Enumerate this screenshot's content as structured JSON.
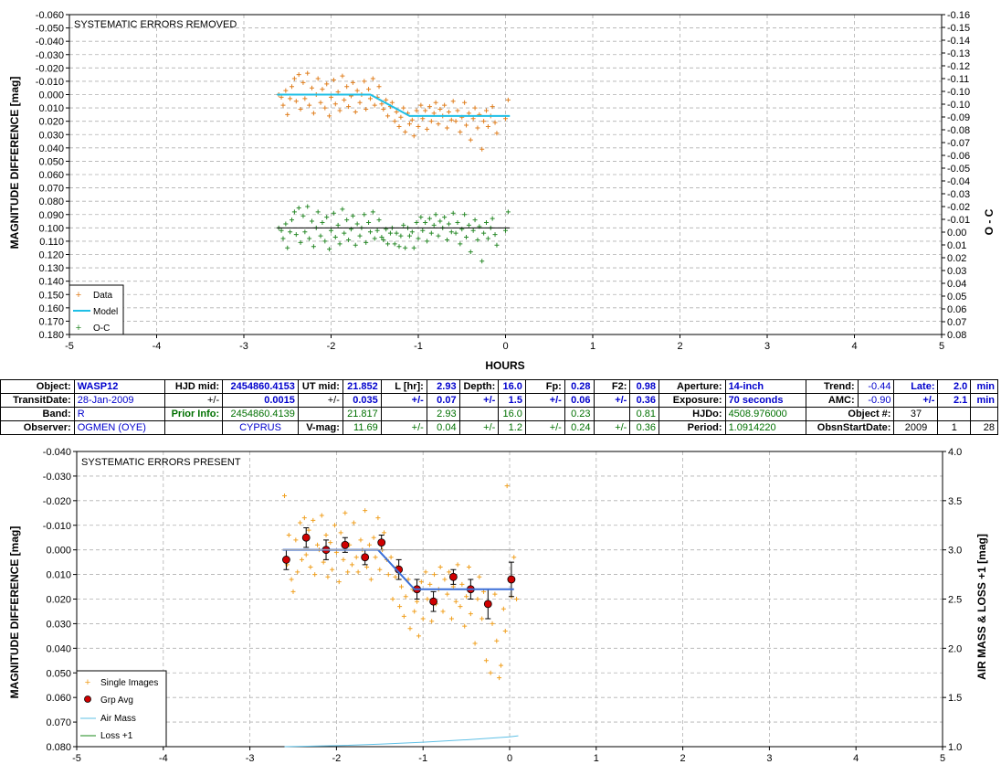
{
  "colors": {
    "data": "#e07f1f",
    "model": "#1fbfe6",
    "oc": "#2a8a2a",
    "single": "#f0a020",
    "grp": "#d00000",
    "bottom_model": "#3a6fd8",
    "airmass": "#5fc0e6",
    "loss": "#1a8a1a",
    "blue_text": "#0000cc",
    "green_text": "#007000"
  },
  "chart_data": [
    {
      "type": "scatter",
      "panel": "top",
      "title": "SYSTEMATIC ERRORS REMOVED",
      "xlabel": "HOURS",
      "ylabel": "MAGNITUDE DIFFERENCE [mag]",
      "y2label": "O - C",
      "xlim": [
        -5,
        5
      ],
      "ylim": [
        -0.06,
        0.18
      ],
      "y_inverted": true,
      "y2lim": [
        -0.16,
        0.08
      ],
      "x_ticks": [
        "-5",
        "-4",
        "-3",
        "-2",
        "-1",
        "0",
        "1",
        "2",
        "3",
        "4",
        "5"
      ],
      "y_ticks": [
        "-0.060",
        "-0.050",
        "-0.040",
        "-0.030",
        "-0.020",
        "-0.010",
        "0.000",
        "0.010",
        "0.020",
        "0.030",
        "0.040",
        "0.050",
        "0.060",
        "0.070",
        "0.080",
        "0.090",
        "0.100",
        "0.110",
        "0.120",
        "0.130",
        "0.140",
        "0.150",
        "0.160",
        "0.170",
        "0.180"
      ],
      "y2_ticks": [
        "-0.16",
        "-0.15",
        "-0.14",
        "-0.13",
        "-0.12",
        "-0.11",
        "-0.10",
        "-0.10",
        "-0.09",
        "-0.08",
        "-0.07",
        "-0.06",
        "-0.05",
        "-0.04",
        "-0.03",
        "-0.02",
        "-0.01",
        "0.00",
        "0.01",
        "0.02",
        "0.03",
        "0.04",
        "0.05",
        "0.06",
        "0.07",
        "0.08"
      ],
      "grid": true,
      "legend": {
        "placement": "bottom-left",
        "entries": [
          "Data",
          "Model",
          "O-C"
        ]
      },
      "series": [
        {
          "name": "Data",
          "kind": "points",
          "x": [
            -2.6,
            -2.57,
            -2.55,
            -2.52,
            -2.5,
            -2.47,
            -2.45,
            -2.42,
            -2.4,
            -2.37,
            -2.35,
            -2.32,
            -2.3,
            -2.27,
            -2.25,
            -2.22,
            -2.2,
            -2.17,
            -2.15,
            -2.12,
            -2.1,
            -2.07,
            -2.05,
            -2.02,
            -2.0,
            -1.97,
            -1.95,
            -1.92,
            -1.9,
            -1.87,
            -1.85,
            -1.82,
            -1.8,
            -1.77,
            -1.75,
            -1.72,
            -1.7,
            -1.67,
            -1.65,
            -1.62,
            -1.6,
            -1.57,
            -1.55,
            -1.52,
            -1.5,
            -1.47,
            -1.45,
            -1.42,
            -1.4,
            -1.37,
            -1.35,
            -1.32,
            -1.3,
            -1.27,
            -1.25,
            -1.22,
            -1.2,
            -1.17,
            -1.15,
            -1.12,
            -1.1,
            -1.07,
            -1.05,
            -1.02,
            -1.0,
            -0.97,
            -0.95,
            -0.92,
            -0.9,
            -0.87,
            -0.85,
            -0.82,
            -0.8,
            -0.77,
            -0.75,
            -0.72,
            -0.7,
            -0.67,
            -0.65,
            -0.62,
            -0.6,
            -0.57,
            -0.55,
            -0.52,
            -0.5,
            -0.47,
            -0.45,
            -0.42,
            -0.4,
            -0.37,
            -0.35,
            -0.32,
            -0.3,
            -0.27,
            -0.25,
            -0.22,
            -0.2,
            -0.17,
            -0.15,
            -0.12,
            -0.1,
            0.0,
            0.03
          ],
          "y": [
            0.0,
            0.002,
            0.008,
            -0.003,
            0.015,
            0.003,
            -0.006,
            -0.012,
            0.005,
            -0.015,
            0.011,
            -0.009,
            0.003,
            -0.016,
            0.008,
            -0.005,
            0.014,
            0.0,
            -0.012,
            0.006,
            -0.004,
            0.01,
            -0.008,
            0.016,
            0.002,
            -0.011,
            0.007,
            -0.002,
            0.012,
            -0.014,
            0.004,
            -0.006,
            0.009,
            0.001,
            -0.009,
            0.013,
            -0.003,
            0.006,
            0.0,
            -0.01,
            0.011,
            -0.004,
            0.003,
            -0.012,
            0.008,
            0.002,
            -0.006,
            0.007,
            0.011,
            0.004,
            0.016,
            0.009,
            0.006,
            0.02,
            0.013,
            0.024,
            0.017,
            0.01,
            0.028,
            0.014,
            0.022,
            0.019,
            0.031,
            0.012,
            0.024,
            0.008,
            0.018,
            0.012,
            0.026,
            0.009,
            0.02,
            0.014,
            0.006,
            0.022,
            0.011,
            0.016,
            0.008,
            0.025,
            0.013,
            0.019,
            0.005,
            0.02,
            0.012,
            0.028,
            0.017,
            0.006,
            0.023,
            0.014,
            0.034,
            0.018,
            0.01,
            0.025,
            0.015,
            0.041,
            0.02,
            0.012,
            0.024,
            0.016,
            0.009,
            0.021,
            0.029,
            0.018,
            0.004
          ]
        },
        {
          "name": "Model",
          "kind": "line",
          "x": [
            -2.62,
            -1.55,
            -1.1,
            0.05
          ],
          "y": [
            0.0,
            0.0,
            0.016,
            0.016
          ]
        },
        {
          "name": "O-C",
          "kind": "points",
          "x": [
            -2.6,
            -2.57,
            -2.55,
            -2.52,
            -2.5,
            -2.47,
            -2.45,
            -2.42,
            -2.4,
            -2.37,
            -2.35,
            -2.32,
            -2.3,
            -2.27,
            -2.25,
            -2.22,
            -2.2,
            -2.17,
            -2.15,
            -2.12,
            -2.1,
            -2.07,
            -2.05,
            -2.02,
            -2.0,
            -1.97,
            -1.95,
            -1.92,
            -1.9,
            -1.87,
            -1.85,
            -1.82,
            -1.8,
            -1.77,
            -1.75,
            -1.72,
            -1.7,
            -1.67,
            -1.65,
            -1.62,
            -1.6,
            -1.57,
            -1.55,
            -1.52,
            -1.5,
            -1.47,
            -1.45,
            -1.42,
            -1.4,
            -1.37,
            -1.35,
            -1.32,
            -1.3,
            -1.27,
            -1.25,
            -1.22,
            -1.2,
            -1.17,
            -1.15,
            -1.12,
            -1.1,
            -1.07,
            -1.05,
            -1.02,
            -1.0,
            -0.97,
            -0.95,
            -0.92,
            -0.9,
            -0.87,
            -0.85,
            -0.82,
            -0.8,
            -0.77,
            -0.75,
            -0.72,
            -0.7,
            -0.67,
            -0.65,
            -0.62,
            -0.6,
            -0.57,
            -0.55,
            -0.52,
            -0.5,
            -0.47,
            -0.45,
            -0.42,
            -0.4,
            -0.37,
            -0.35,
            -0.32,
            -0.3,
            -0.27,
            -0.25,
            -0.22,
            -0.2,
            -0.17,
            -0.15,
            -0.12,
            -0.1,
            0.0,
            0.03
          ],
          "y": [
            0.0,
            0.002,
            0.008,
            -0.003,
            0.015,
            0.003,
            -0.006,
            -0.012,
            0.005,
            -0.015,
            0.011,
            -0.009,
            0.003,
            -0.016,
            0.008,
            -0.005,
            0.014,
            0.0,
            -0.012,
            0.006,
            -0.004,
            0.01,
            -0.008,
            0.016,
            0.002,
            -0.011,
            0.007,
            -0.002,
            0.012,
            -0.014,
            0.004,
            -0.006,
            0.009,
            0.001,
            -0.009,
            0.013,
            -0.003,
            0.006,
            0.0,
            -0.01,
            0.011,
            -0.004,
            0.003,
            -0.012,
            0.008,
            0.002,
            -0.006,
            0.007,
            0.009,
            0.001,
            0.012,
            0.004,
            0.0,
            0.012,
            0.004,
            0.014,
            0.006,
            -0.002,
            0.015,
            0.0,
            0.006,
            0.003,
            0.015,
            -0.004,
            0.008,
            -0.008,
            0.002,
            -0.004,
            0.01,
            -0.007,
            0.004,
            -0.002,
            -0.01,
            0.006,
            -0.005,
            0.0,
            -0.008,
            0.009,
            -0.003,
            0.003,
            -0.011,
            0.004,
            -0.004,
            0.012,
            0.001,
            -0.01,
            0.007,
            -0.002,
            0.018,
            0.002,
            -0.006,
            0.009,
            -0.001,
            0.025,
            0.004,
            -0.004,
            0.008,
            0.0,
            -0.007,
            0.005,
            0.013,
            0.002,
            -0.012
          ]
        },
        {
          "name": "O-C baseline",
          "kind": "line",
          "x": [
            -2.62,
            0.05
          ],
          "y": [
            0.0,
            0.0
          ]
        }
      ]
    },
    {
      "type": "scatter",
      "panel": "bottom",
      "title": "SYSTEMATIC ERRORS PRESENT",
      "xlabel": "",
      "ylabel": "MAGNITUDE DIFFERENCE [mag]",
      "y2label": "AIR MASS & LOSS +1 [mag]",
      "xlim": [
        -5,
        5
      ],
      "ylim": [
        -0.04,
        0.08
      ],
      "y_inverted": true,
      "y2lim": [
        1.0,
        4.0
      ],
      "x_ticks": [
        "-5",
        "-4",
        "-3",
        "-2",
        "-1",
        "0",
        "1",
        "2",
        "3",
        "4",
        "5"
      ],
      "y_ticks": [
        "-0.040",
        "-0.030",
        "-0.020",
        "-0.010",
        "0.000",
        "0.010",
        "0.020",
        "0.030",
        "0.040",
        "0.050",
        "0.060",
        "0.070",
        "0.080"
      ],
      "y2_ticks": [
        "4.0",
        "3.5",
        "3.0",
        "2.5",
        "2.0",
        "1.5",
        "1.0"
      ],
      "grid": true,
      "legend": {
        "placement": "bottom-left",
        "entries": [
          "Single Images",
          "Grp Avg",
          "Air Mass",
          "Loss +1"
        ]
      },
      "series": [
        {
          "name": "Single Images",
          "kind": "points",
          "x": [
            -2.6,
            -2.57,
            -2.55,
            -2.52,
            -2.5,
            -2.47,
            -2.45,
            -2.42,
            -2.4,
            -2.37,
            -2.35,
            -2.32,
            -2.3,
            -2.27,
            -2.25,
            -2.22,
            -2.2,
            -2.17,
            -2.15,
            -2.12,
            -2.1,
            -2.07,
            -2.05,
            -2.02,
            -2.0,
            -1.97,
            -1.95,
            -1.92,
            -1.9,
            -1.87,
            -1.85,
            -1.82,
            -1.8,
            -1.77,
            -1.75,
            -1.72,
            -1.7,
            -1.67,
            -1.65,
            -1.62,
            -1.6,
            -1.57,
            -1.55,
            -1.52,
            -1.5,
            -1.47,
            -1.45,
            -1.42,
            -1.4,
            -1.37,
            -1.35,
            -1.32,
            -1.3,
            -1.27,
            -1.25,
            -1.22,
            -1.2,
            -1.17,
            -1.15,
            -1.12,
            -1.1,
            -1.07,
            -1.05,
            -1.02,
            -1.0,
            -0.97,
            -0.95,
            -0.92,
            -0.9,
            -0.87,
            -0.85,
            -0.82,
            -0.8,
            -0.77,
            -0.75,
            -0.72,
            -0.7,
            -0.67,
            -0.65,
            -0.62,
            -0.6,
            -0.57,
            -0.55,
            -0.52,
            -0.5,
            -0.47,
            -0.45,
            -0.42,
            -0.4,
            -0.37,
            -0.35,
            -0.32,
            -0.3,
            -0.27,
            -0.25,
            -0.22,
            -0.2,
            -0.17,
            -0.15,
            -0.12,
            -0.1,
            -0.07,
            -0.05,
            -0.03,
            0.02,
            0.05,
            0.08
          ],
          "y": [
            -0.022,
            0.006,
            -0.006,
            0.012,
            0.017,
            -0.004,
            0.009,
            -0.011,
            0.004,
            -0.013,
            0.002,
            -0.008,
            0.007,
            -0.012,
            0.01,
            -0.002,
            0.0,
            -0.014,
            0.005,
            -0.006,
            0.011,
            -0.003,
            0.008,
            -0.01,
            0.001,
            0.013,
            -0.007,
            0.004,
            -0.015,
            0.009,
            -0.002,
            0.006,
            -0.011,
            0.003,
            0.009,
            -0.004,
            0.0,
            -0.016,
            0.007,
            -0.002,
            0.012,
            -0.005,
            0.003,
            -0.013,
            0.008,
            0.0,
            -0.007,
            0.004,
            0.01,
            0.003,
            0.02,
            0.011,
            0.007,
            0.023,
            0.015,
            0.027,
            0.019,
            0.012,
            0.032,
            0.016,
            0.025,
            0.021,
            0.035,
            0.013,
            0.028,
            0.009,
            0.02,
            0.014,
            0.029,
            0.01,
            0.022,
            0.016,
            0.007,
            0.025,
            0.012,
            0.018,
            0.009,
            0.028,
            0.015,
            0.021,
            0.006,
            0.023,
            0.014,
            0.031,
            0.019,
            0.007,
            0.026,
            0.016,
            0.038,
            0.02,
            0.011,
            0.028,
            0.017,
            0.045,
            0.022,
            0.05,
            0.03,
            0.018,
            0.037,
            0.052,
            0.047,
            0.024,
            0.033,
            -0.026,
            0.019,
            0.003,
            0.02
          ]
        },
        {
          "name": "Grp Avg",
          "kind": "errorbar",
          "x": [
            -2.58,
            -2.35,
            -2.12,
            -1.9,
            -1.67,
            -1.48,
            -1.28,
            -1.07,
            -0.88,
            -0.65,
            -0.45,
            -0.25,
            0.02
          ],
          "y": [
            0.004,
            -0.005,
            0.0,
            -0.002,
            0.003,
            -0.003,
            0.008,
            0.016,
            0.021,
            0.011,
            0.016,
            0.022,
            0.012
          ],
          "err": [
            0.004,
            0.004,
            0.004,
            0.003,
            0.003,
            0.003,
            0.004,
            0.004,
            0.004,
            0.003,
            0.004,
            0.006,
            0.007
          ]
        },
        {
          "name": "Model",
          "kind": "line",
          "x": [
            -2.62,
            -1.52,
            -1.1,
            0.05
          ],
          "y": [
            0.0,
            0.0,
            0.016,
            0.016
          ]
        },
        {
          "name": "Baseline",
          "kind": "line",
          "x": [
            -2.62,
            0.05
          ],
          "y": [
            0.0,
            0.0
          ]
        },
        {
          "name": "Air Mass",
          "kind": "line",
          "axis": "y2",
          "x": [
            -2.6,
            -2.0,
            -1.5,
            -1.0,
            -0.5,
            0.0,
            0.1
          ],
          "y": [
            1.0,
            1.01,
            1.025,
            1.045,
            1.07,
            1.1,
            1.11
          ]
        }
      ]
    }
  ],
  "info": {
    "row1": {
      "object_label": "Object:",
      "object": "WASP12",
      "hjdmid_label": "HJD mid:",
      "hjdmid": "2454860.4153",
      "utmid_label": "UT mid:",
      "utmid": "21.852",
      "lhr_label": "L [hr]:",
      "lhr": "2.93",
      "depth_label": "Depth:",
      "depth": "16.0",
      "fp_label": "Fp:",
      "fp": "0.28",
      "f2_label": "F2:",
      "f2": "0.98",
      "aperture_label": "Aperture:",
      "aperture": "14-inch",
      "trend_label": "Trend:",
      "trend": "-0.44",
      "late_label": "Late:",
      "late": "2.0",
      "late_unit": "min"
    },
    "row2": {
      "transitdate_label": "TransitDate:",
      "transitdate": "28-Jan-2009",
      "pm1": "+/-",
      "hjdmid_err": "0.0015",
      "pm2": "+/-",
      "utmid_err": "0.035",
      "pm3": "+/-",
      "lhr_err": "0.07",
      "pm4": "+/-",
      "depth_err": "1.5",
      "pm5": "+/-",
      "fp_err": "0.06",
      "pm6": "+/-",
      "f2_err": "0.36",
      "exposure_label": "Exposure:",
      "exposure": "70 seconds",
      "amc_label": "AMC:",
      "amc": "-0.90",
      "pm7": "+/-",
      "late_err": "2.1",
      "late_err_unit": "min"
    },
    "row3": {
      "band_label": "Band:",
      "band": "R",
      "prior_label": "Prior Info:",
      "prior_hjd": "2454860.4139",
      "prior_ut": "21.817",
      "prior_lhr": "2.93",
      "prior_depth": "16.0",
      "prior_fp": "0.23",
      "prior_f2": "0.81",
      "hjdo_label": "HJDo:",
      "hjdo": "4508.976000",
      "objnum_label": "Object #:",
      "objnum": "37"
    },
    "row4": {
      "observer_label": "Observer:",
      "observer": "OGMEN (OYE)",
      "location": "CYPRUS",
      "vmag_label": "V-mag:",
      "vmag": "11.69",
      "pm1": "+/-",
      "lhr_err": "0.04",
      "pm2": "+/-",
      "depth_err": "1.2",
      "pm3": "+/-",
      "fp_err": "0.24",
      "pm4": "+/-",
      "f2_err": "0.36",
      "period_label": "Period:",
      "period": "1.0914220",
      "obsstart_label": "ObsnStartDate:",
      "obs_year": "2009",
      "obs_month": "1",
      "obs_day": "28"
    }
  }
}
